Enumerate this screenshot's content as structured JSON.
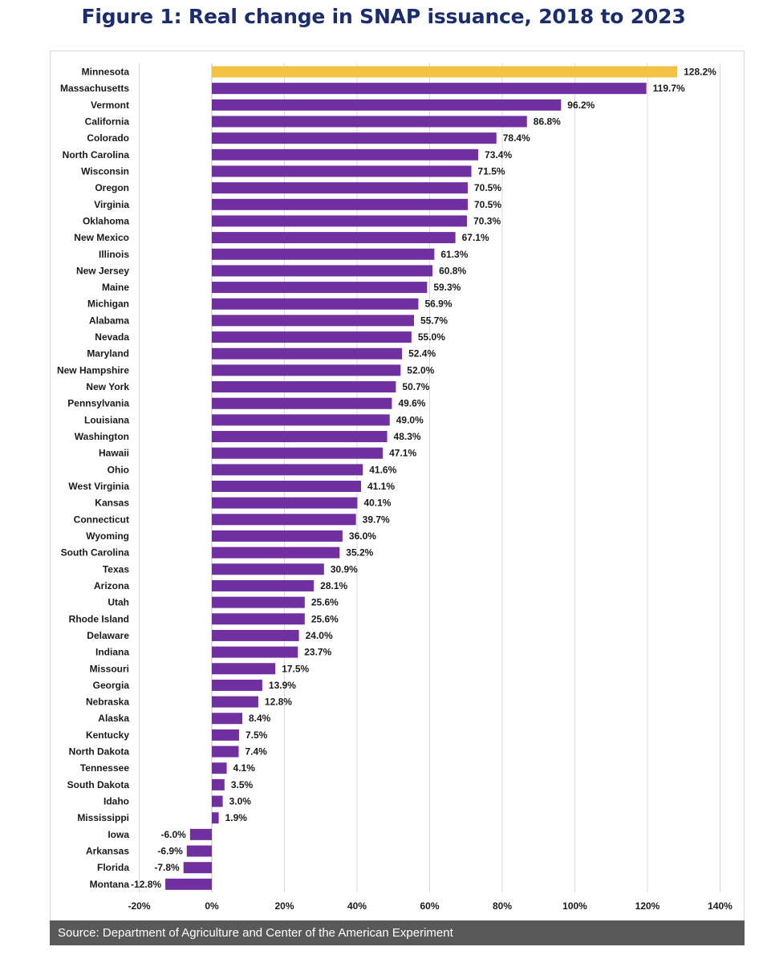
{
  "title": "Figure 1: Real change in SNAP issuance, 2018 to 2023",
  "source": "Source: Department of Agriculture and Center of the American Experiment",
  "colors": {
    "bar": "#7030a0",
    "highlight": "#f4c242",
    "grid": "#d9d9d9",
    "title": "#1c2d6e",
    "footer_bg": "#595959"
  },
  "chart_data": {
    "type": "bar",
    "orientation": "horizontal",
    "title": "Figure 1: Real change in SNAP issuance, 2018 to 2023",
    "xlim": [
      -20,
      140
    ],
    "x_ticks": [
      -20,
      0,
      20,
      40,
      60,
      80,
      100,
      120,
      140
    ],
    "x_tick_labels": [
      "-20%",
      "0%",
      "20%",
      "40%",
      "60%",
      "80%",
      "100%",
      "120%",
      "140%"
    ],
    "grid": true,
    "highlight_category": "Minnesota",
    "categories": [
      "Minnesota",
      "Massachusetts",
      "Vermont",
      "California",
      "Colorado",
      "North Carolina",
      "Wisconsin",
      "Oregon",
      "Virginia",
      "Oklahoma",
      "New Mexico",
      "Illinois",
      "New Jersey",
      "Maine",
      "Michigan",
      "Alabama",
      "Nevada",
      "Maryland",
      "New Hampshire",
      "New York",
      "Pennsylvania",
      "Louisiana",
      "Washington",
      "Hawaii",
      "Ohio",
      "West Virginia",
      "Kansas",
      "Connecticut",
      "Wyoming",
      "South Carolina",
      "Texas",
      "Arizona",
      "Utah",
      "Rhode Island",
      "Delaware",
      "Indiana",
      "Missouri",
      "Georgia",
      "Nebraska",
      "Alaska",
      "Kentucky",
      "North Dakota",
      "Tennessee",
      "South Dakota",
      "Idaho",
      "Mississippi",
      "Iowa",
      "Arkansas",
      "Florida",
      "Montana"
    ],
    "values": [
      128.2,
      119.7,
      96.2,
      86.8,
      78.4,
      73.4,
      71.5,
      70.5,
      70.5,
      70.3,
      67.1,
      61.3,
      60.8,
      59.3,
      56.9,
      55.7,
      55.0,
      52.4,
      52.0,
      50.7,
      49.6,
      49.0,
      48.3,
      47.1,
      41.6,
      41.1,
      40.1,
      39.7,
      36.0,
      35.2,
      30.9,
      28.1,
      25.6,
      25.6,
      24.0,
      23.7,
      17.5,
      13.9,
      12.8,
      8.4,
      7.5,
      7.4,
      4.1,
      3.5,
      3.0,
      1.9,
      -6.0,
      -6.9,
      -7.8,
      -12.8
    ],
    "value_labels": [
      "128.2%",
      "119.7%",
      "96.2%",
      "86.8%",
      "78.4%",
      "73.4%",
      "71.5%",
      "70.5%",
      "70.5%",
      "70.3%",
      "67.1%",
      "61.3%",
      "60.8%",
      "59.3%",
      "56.9%",
      "55.7%",
      "55.0%",
      "52.4%",
      "52.0%",
      "50.7%",
      "49.6%",
      "49.0%",
      "48.3%",
      "47.1%",
      "41.6%",
      "41.1%",
      "40.1%",
      "39.7%",
      "36.0%",
      "35.2%",
      "30.9%",
      "28.1%",
      "25.6%",
      "25.6%",
      "24.0%",
      "23.7%",
      "17.5%",
      "13.9%",
      "12.8%",
      "8.4%",
      "7.5%",
      "7.4%",
      "4.1%",
      "3.5%",
      "3.0%",
      "1.9%",
      "-6.0%",
      "-6.9%",
      "-7.8%",
      "-12.8%"
    ]
  }
}
